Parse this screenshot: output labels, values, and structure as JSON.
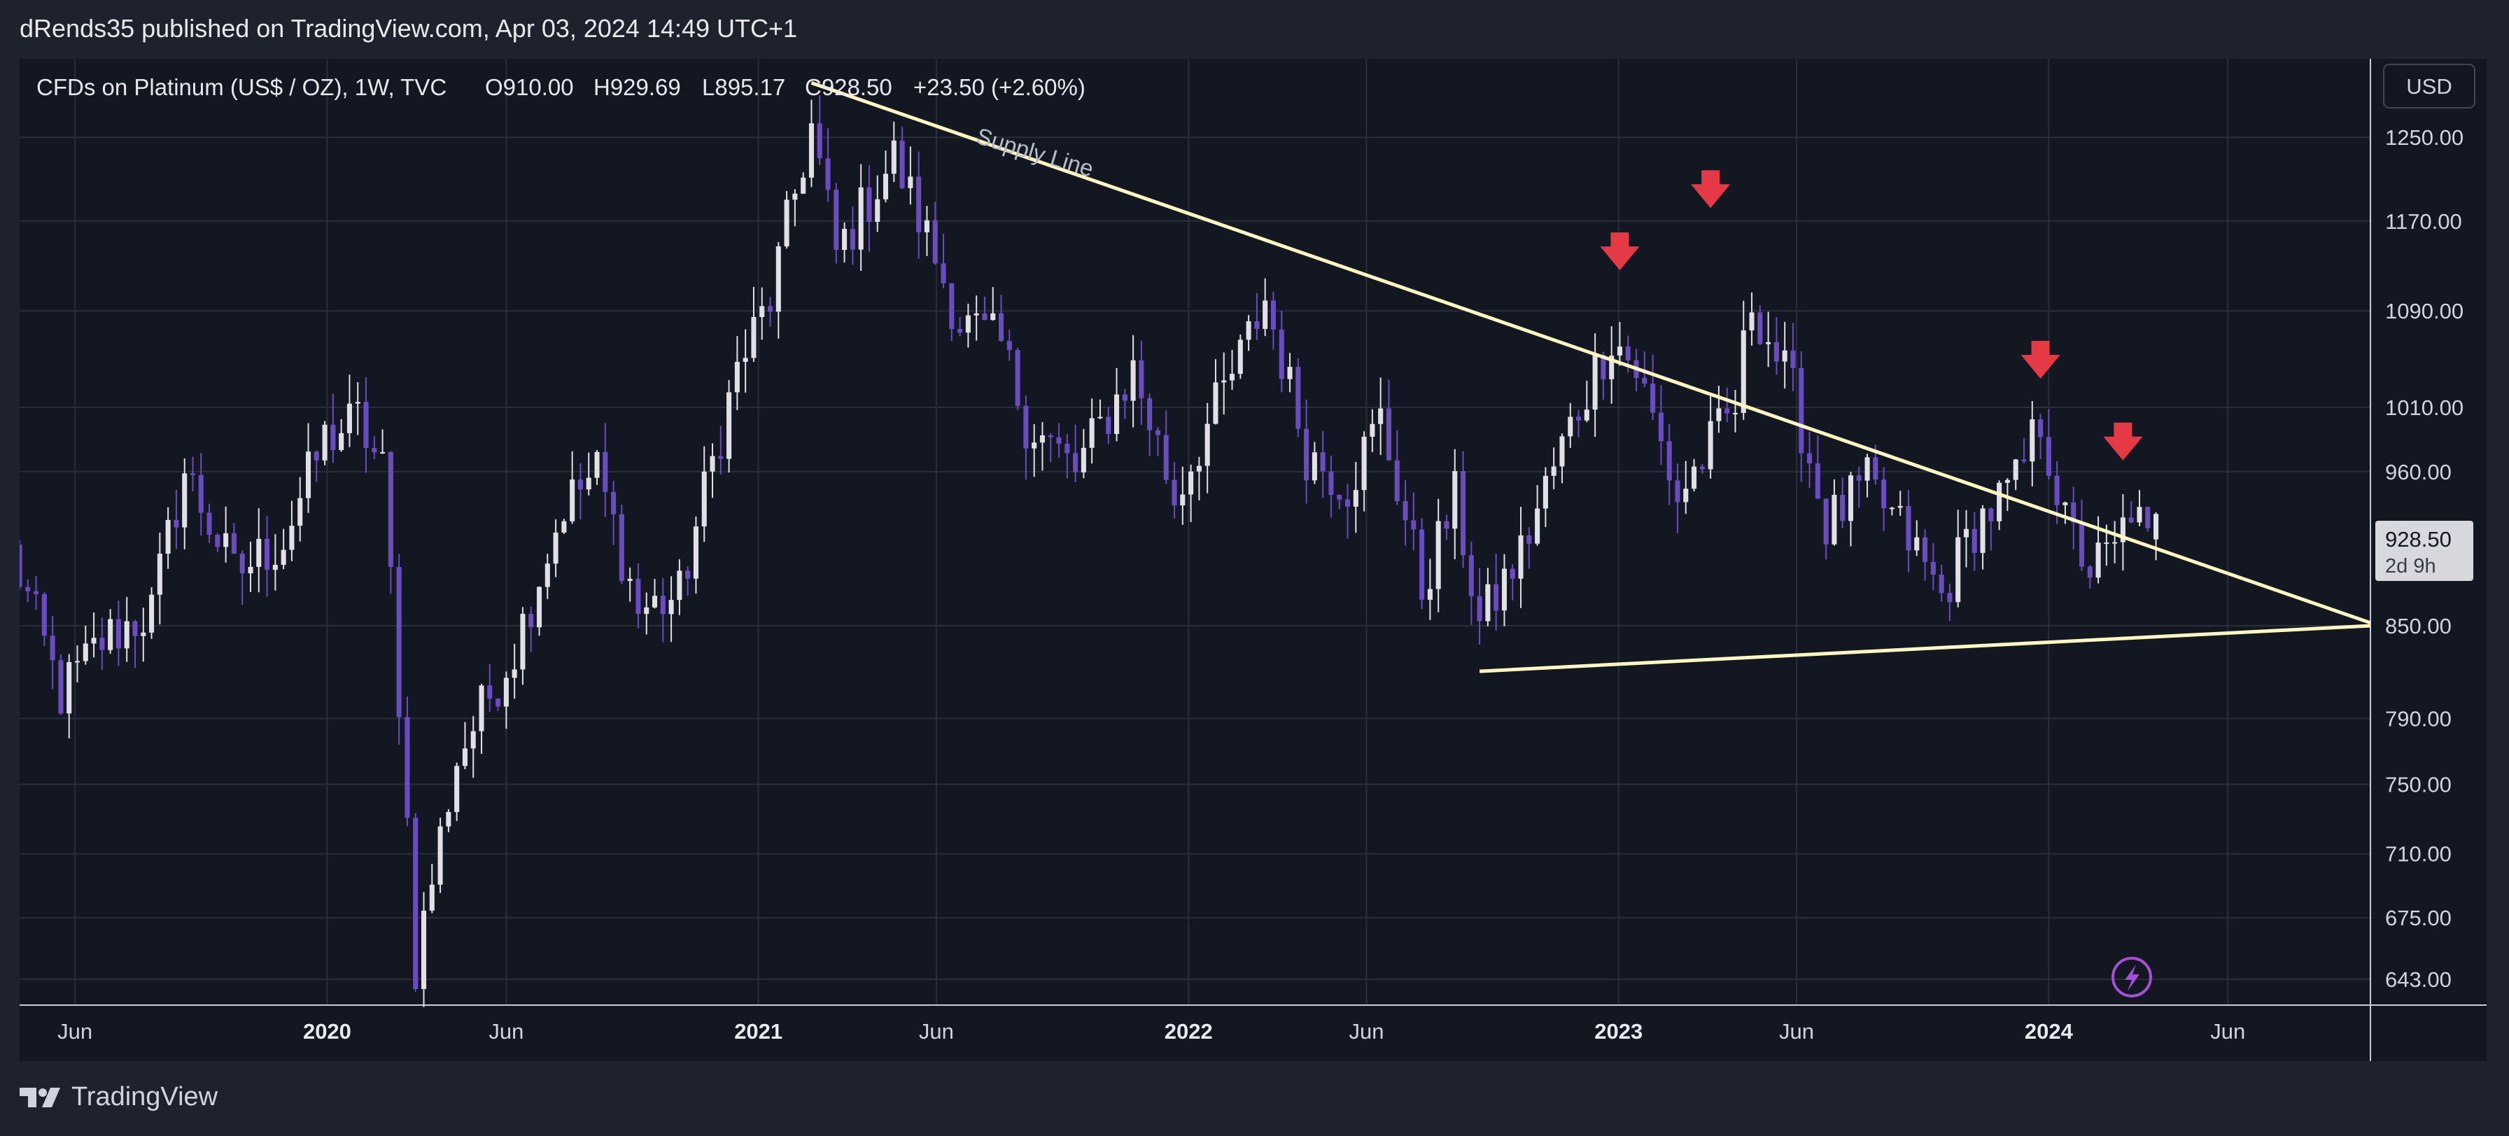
{
  "header": {
    "published_text": "dRends35 published on TradingView.com, Apr 03, 2024 14:49 UTC+1"
  },
  "footer": {
    "brand": "TradingView"
  },
  "legend": {
    "symbol": "CFDs on Platinum (US$ / OZ), 1W, TVC",
    "open": "O910.00",
    "high": "H929.69",
    "low": "L895.17",
    "close": "C928.50",
    "change": "+23.50 (+2.60%)"
  },
  "price_axis": {
    "currency_button": "USD",
    "current_price_label": "928.50",
    "countdown_label": "2d 9h"
  },
  "annotations": {
    "supply_line_label": "Supply Line"
  },
  "colors": {
    "background": "#131722",
    "grid": "#2a2e39",
    "up_candle": "#e0e0e6",
    "down_candle": "#6a4cc0",
    "trendline": "#fff7c2",
    "arrow": "#e63946",
    "bolt": "#a64fd6"
  },
  "icons": {
    "arrow": "down-arrow-icon",
    "bolt": "lightning-icon",
    "logo": "tradingview-logo-icon"
  },
  "chart_data": {
    "type": "candlestick",
    "symbol": "CFDs on Platinum (US$ / OZ)",
    "interval": "1W",
    "y_scale": "log",
    "ylim": [
      630,
      1330
    ],
    "y_ticks": [
      643,
      675,
      710,
      750,
      790,
      850,
      960,
      1010,
      1090,
      1170,
      1250
    ],
    "y_tick_labels": [
      "643.00",
      "675.00",
      "710.00",
      "750.00",
      "790.00",
      "850.00",
      "960.00",
      "1010.00",
      "1090.00",
      "1170.00",
      "1250.00"
    ],
    "xlim": [
      "2019-04-15",
      "2024-09-30"
    ],
    "x_ticks": [
      {
        "date": "2019-06-01",
        "label": "Jun",
        "bold": false
      },
      {
        "date": "2020-01-01",
        "label": "2020",
        "bold": true
      },
      {
        "date": "2020-06-01",
        "label": "Jun",
        "bold": false
      },
      {
        "date": "2021-01-01",
        "label": "2021",
        "bold": true
      },
      {
        "date": "2021-06-01",
        "label": "Jun",
        "bold": false
      },
      {
        "date": "2022-01-01",
        "label": "2022",
        "bold": true
      },
      {
        "date": "2022-06-01",
        "label": "Jun",
        "bold": false
      },
      {
        "date": "2023-01-01",
        "label": "2023",
        "bold": true
      },
      {
        "date": "2023-06-01",
        "label": "Jun",
        "bold": false
      },
      {
        "date": "2024-01-01",
        "label": "2024",
        "bold": true
      },
      {
        "date": "2024-06-01",
        "label": "Jun",
        "bold": false
      }
    ],
    "anchors": [
      {
        "date": "2019-04-08",
        "close": 900
      },
      {
        "date": "2019-05-20",
        "close": 805
      },
      {
        "date": "2019-06-24",
        "close": 840
      },
      {
        "date": "2019-08-05",
        "close": 860
      },
      {
        "date": "2019-09-02",
        "close": 960
      },
      {
        "date": "2019-10-14",
        "close": 885
      },
      {
        "date": "2019-11-25",
        "close": 910
      },
      {
        "date": "2019-12-30",
        "close": 985
      },
      {
        "date": "2020-01-27",
        "close": 1000
      },
      {
        "date": "2020-02-17",
        "close": 960
      },
      {
        "date": "2020-03-16",
        "close": 650
      },
      {
        "date": "2020-04-20",
        "close": 765
      },
      {
        "date": "2020-06-08",
        "close": 835
      },
      {
        "date": "2020-07-20",
        "close": 935
      },
      {
        "date": "2020-08-17",
        "close": 960
      },
      {
        "date": "2020-09-21",
        "close": 860
      },
      {
        "date": "2020-10-26",
        "close": 870
      },
      {
        "date": "2020-12-14",
        "close": 1040
      },
      {
        "date": "2021-01-11",
        "close": 1100
      },
      {
        "date": "2021-02-15",
        "close": 1260
      },
      {
        "date": "2021-03-08",
        "close": 1140
      },
      {
        "date": "2021-04-26",
        "close": 1230
      },
      {
        "date": "2021-06-21",
        "close": 1080
      },
      {
        "date": "2021-07-26",
        "close": 1060
      },
      {
        "date": "2021-08-16",
        "close": 1000
      },
      {
        "date": "2021-09-27",
        "close": 960
      },
      {
        "date": "2021-11-15",
        "close": 1040
      },
      {
        "date": "2021-12-20",
        "close": 940
      },
      {
        "date": "2022-02-14",
        "close": 1050
      },
      {
        "date": "2022-03-07",
        "close": 1100
      },
      {
        "date": "2022-04-11",
        "close": 975
      },
      {
        "date": "2022-05-16",
        "close": 950
      },
      {
        "date": "2022-06-13",
        "close": 1000
      },
      {
        "date": "2022-07-18",
        "close": 875
      },
      {
        "date": "2022-08-15",
        "close": 940
      },
      {
        "date": "2022-09-05",
        "close": 850
      },
      {
        "date": "2022-10-10",
        "close": 900
      },
      {
        "date": "2022-11-28",
        "close": 1010
      },
      {
        "date": "2022-12-26",
        "close": 1070
      },
      {
        "date": "2023-01-16",
        "close": 1040
      },
      {
        "date": "2023-02-20",
        "close": 940
      },
      {
        "date": "2023-03-13",
        "close": 970
      },
      {
        "date": "2023-04-10",
        "close": 1010
      },
      {
        "date": "2023-04-24",
        "close": 1100
      },
      {
        "date": "2023-05-29",
        "close": 1020
      },
      {
        "date": "2023-06-26",
        "close": 920
      },
      {
        "date": "2023-07-31",
        "close": 950
      },
      {
        "date": "2023-09-04",
        "close": 910
      },
      {
        "date": "2023-10-02",
        "close": 870
      },
      {
        "date": "2023-10-30",
        "close": 920
      },
      {
        "date": "2023-12-04",
        "close": 950
      },
      {
        "date": "2023-12-25",
        "close": 1000
      },
      {
        "date": "2024-01-15",
        "close": 920
      },
      {
        "date": "2024-02-05",
        "close": 890
      },
      {
        "date": "2024-02-26",
        "close": 900
      },
      {
        "date": "2024-03-11",
        "close": 935
      },
      {
        "date": "2024-03-25",
        "close": 905
      },
      {
        "date": "2024-04-01",
        "close": 928.5
      }
    ],
    "last_candle": {
      "date": "2024-04-01",
      "open": 910.0,
      "high": 929.69,
      "low": 895.17,
      "close": 928.5
    },
    "trendlines": [
      {
        "name": "Supply Line",
        "from": {
          "date": "2021-02-15",
          "price": 1305
        },
        "to": {
          "date": "2024-09-30",
          "price": 852
        }
      },
      {
        "name": "",
        "from": {
          "date": "2022-09-05",
          "price": 820
        },
        "to": {
          "date": "2024-09-30",
          "price": 850
        }
      }
    ],
    "markers": [
      {
        "type": "down-arrow",
        "date": "2023-01-02",
        "price": 1133
      },
      {
        "type": "down-arrow",
        "date": "2023-03-20",
        "price": 1190
      },
      {
        "type": "down-arrow",
        "date": "2023-12-25",
        "price": 1040
      },
      {
        "type": "down-arrow",
        "date": "2024-03-04",
        "price": 975
      }
    ],
    "current_price": 928.5
  }
}
